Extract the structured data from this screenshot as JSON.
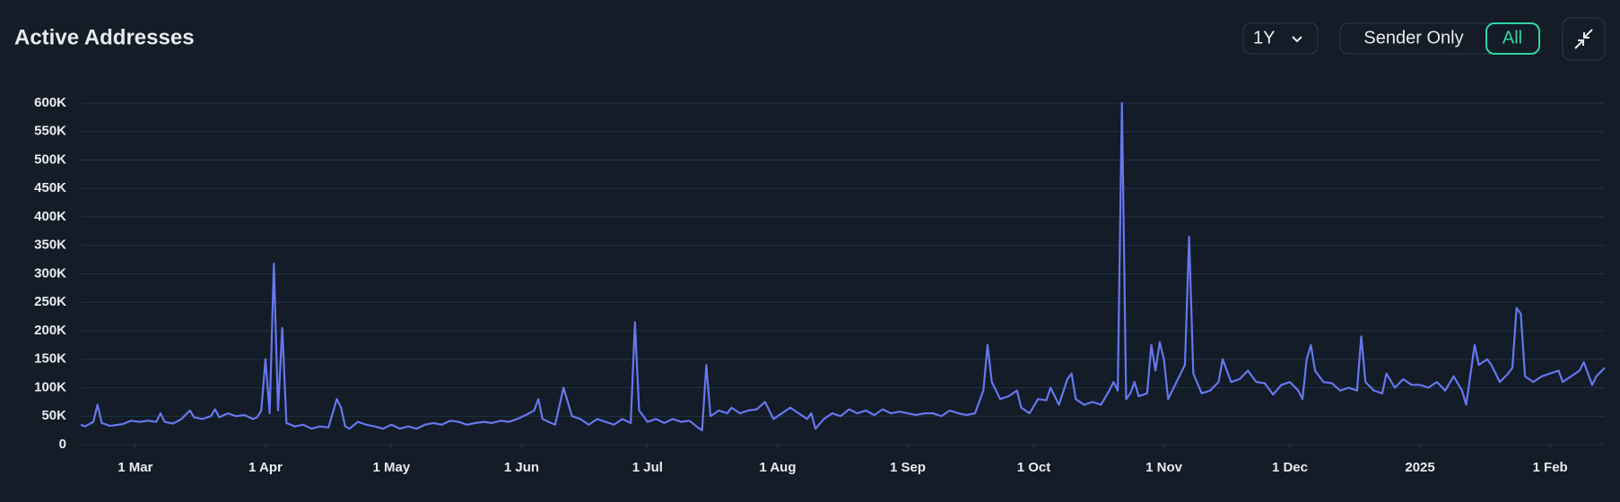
{
  "ui": {
    "range": "1Y",
    "toggle": [
      "Sender Only",
      "All"
    ]
  },
  "chart_data": {
    "type": "line",
    "title": "Active Addresses",
    "color": "#6677ee",
    "grid": true,
    "x": [
      0,
      1,
      3,
      4,
      5,
      7,
      10,
      12,
      14,
      16,
      18,
      19,
      20,
      22,
      24,
      26,
      27,
      29,
      31,
      32,
      33,
      35,
      37,
      39,
      41,
      42,
      43,
      44,
      45,
      46,
      47,
      48,
      49,
      51,
      53,
      55,
      57,
      59,
      61,
      62,
      63,
      64,
      66,
      68,
      70,
      72,
      74,
      76,
      78,
      80,
      82,
      84,
      86,
      88,
      90,
      92,
      94,
      96,
      98,
      100,
      102,
      104,
      106,
      108,
      109,
      110,
      112,
      113,
      115,
      117,
      119,
      121,
      123,
      125,
      127,
      129,
      131,
      132,
      133,
      135,
      137,
      139,
      141,
      143,
      145,
      147,
      148,
      149,
      150,
      152,
      154,
      155,
      157,
      159,
      161,
      163,
      165,
      167,
      169,
      171,
      173,
      174,
      175,
      177,
      179,
      181,
      183,
      185,
      187,
      189,
      191,
      193,
      195,
      197,
      199,
      201,
      203,
      205,
      207,
      209,
      211,
      213,
      215,
      216,
      217,
      219,
      221,
      223,
      224,
      226,
      228,
      230,
      231,
      233,
      235,
      236,
      237,
      239,
      241,
      243,
      245,
      246,
      247,
      248,
      249,
      250,
      251,
      252,
      254,
      255,
      256,
      257,
      258,
      259,
      261,
      263,
      264,
      265,
      267,
      269,
      271,
      272,
      274,
      276,
      278,
      280,
      282,
      284,
      286,
      288,
      290,
      291,
      292,
      293,
      294,
      296,
      298,
      300,
      302,
      304,
      305,
      306,
      308,
      310,
      311,
      313,
      315,
      317,
      319,
      321,
      323,
      325,
      327,
      329,
      330,
      332,
      333,
      335,
      336,
      338,
      340,
      341,
      342,
      343,
      344,
      346,
      348,
      350,
      352,
      353,
      355,
      357,
      358,
      360,
      361,
      363
    ],
    "values": [
      35000,
      32000,
      40000,
      70000,
      38000,
      33000,
      36000,
      42000,
      40000,
      42000,
      40000,
      55000,
      40000,
      37000,
      45000,
      60000,
      48000,
      45000,
      50000,
      62000,
      48000,
      55000,
      50000,
      52000,
      45000,
      48000,
      60000,
      150000,
      55000,
      318000,
      60000,
      205000,
      38000,
      32000,
      35000,
      28000,
      32000,
      30000,
      80000,
      65000,
      32000,
      28000,
      40000,
      35000,
      32000,
      28000,
      35000,
      28000,
      32000,
      28000,
      35000,
      38000,
      35000,
      42000,
      40000,
      35000,
      38000,
      40000,
      38000,
      42000,
      40000,
      45000,
      52000,
      60000,
      80000,
      45000,
      38000,
      35000,
      100000,
      50000,
      45000,
      35000,
      45000,
      40000,
      35000,
      45000,
      38000,
      215000,
      60000,
      40000,
      45000,
      38000,
      45000,
      40000,
      42000,
      30000,
      25000,
      140000,
      50000,
      60000,
      55000,
      65000,
      55000,
      60000,
      62000,
      75000,
      45000,
      55000,
      65000,
      55000,
      45000,
      55000,
      28000,
      45000,
      55000,
      50000,
      62000,
      55000,
      60000,
      52000,
      62000,
      55000,
      58000,
      55000,
      52000,
      55000,
      55000,
      50000,
      60000,
      55000,
      52000,
      55000,
      95000,
      175000,
      110000,
      80000,
      85000,
      95000,
      65000,
      55000,
      80000,
      78000,
      100000,
      70000,
      115000,
      125000,
      80000,
      70000,
      75000,
      70000,
      95000,
      110000,
      95000,
      600000,
      80000,
      90000,
      110000,
      85000,
      90000,
      175000,
      130000,
      180000,
      150000,
      80000,
      110000,
      140000,
      365000,
      125000,
      90000,
      95000,
      110000,
      150000,
      110000,
      115000,
      130000,
      110000,
      108000,
      88000,
      105000,
      110000,
      95000,
      80000,
      150000,
      175000,
      130000,
      110000,
      108000,
      95000,
      100000,
      95000,
      190000,
      110000,
      95000,
      90000,
      125000,
      100000,
      115000,
      105000,
      105000,
      100000,
      110000,
      95000,
      120000,
      95000,
      70000,
      175000,
      140000,
      150000,
      140000,
      110000,
      125000,
      135000,
      240000,
      230000,
      120000,
      110000,
      120000,
      125000,
      130000,
      110000,
      120000,
      130000,
      145000,
      105000,
      120000,
      135000
    ],
    "xlim": [
      0,
      363
    ],
    "xticks": [
      {
        "value": 13,
        "label": "1 Mar"
      },
      {
        "value": 44,
        "label": "1 Apr"
      },
      {
        "value": 74,
        "label": "1 May"
      },
      {
        "value": 105,
        "label": "1 Jun"
      },
      {
        "value": 135,
        "label": "1 Jul"
      },
      {
        "value": 166,
        "label": "1 Aug"
      },
      {
        "value": 197,
        "label": "1 Sep"
      },
      {
        "value": 227,
        "label": "1 Oct"
      },
      {
        "value": 258,
        "label": "1 Nov"
      },
      {
        "value": 288,
        "label": "1 Dec"
      },
      {
        "value": 319,
        "label": "2025"
      },
      {
        "value": 350,
        "label": "1 Feb"
      }
    ],
    "ylim": [
      0,
      600000
    ],
    "yticks": [
      0,
      {
        "value": 50000,
        "label": "50K"
      },
      {
        "value": 100000,
        "label": "100K"
      },
      {
        "value": 150000,
        "label": "150K"
      },
      {
        "value": 200000,
        "label": "200K"
      },
      {
        "value": 250000,
        "label": "250K"
      },
      {
        "value": 300000,
        "label": "300K"
      },
      {
        "value": 350000,
        "label": "350K"
      },
      {
        "value": 400000,
        "label": "400K"
      },
      {
        "value": 450000,
        "label": "450K"
      },
      {
        "value": 500000,
        "label": "500K"
      },
      {
        "value": 550000,
        "label": "550K"
      },
      {
        "value": 600000,
        "label": "600K"
      }
    ]
  }
}
